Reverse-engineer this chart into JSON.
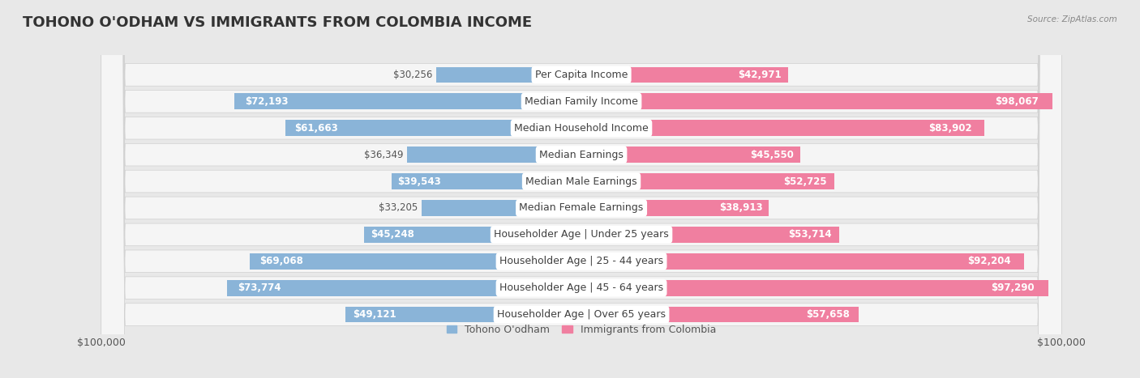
{
  "title": "TOHONO O'ODHAM VS IMMIGRANTS FROM COLOMBIA INCOME",
  "source": "Source: ZipAtlas.com",
  "categories": [
    "Per Capita Income",
    "Median Family Income",
    "Median Household Income",
    "Median Earnings",
    "Median Male Earnings",
    "Median Female Earnings",
    "Householder Age | Under 25 years",
    "Householder Age | 25 - 44 years",
    "Householder Age | 45 - 64 years",
    "Householder Age | Over 65 years"
  ],
  "tohono_values": [
    30256,
    72193,
    61663,
    36349,
    39543,
    33205,
    45248,
    69068,
    73774,
    49121
  ],
  "colombia_values": [
    42971,
    98067,
    83902,
    45550,
    52725,
    38913,
    53714,
    92204,
    97290,
    57658
  ],
  "tohono_color": "#8ab4d8",
  "colombia_color": "#f07fa0",
  "tohono_label": "Tohono O'odham",
  "colombia_label": "Immigrants from Colombia",
  "max_value": 100000,
  "bg_color": "#e8e8e8",
  "row_bg_color": "#f5f5f5",
  "bar_height": 0.6,
  "title_fontsize": 13,
  "label_fontsize": 9,
  "value_fontsize": 8.5,
  "axis_label_fontsize": 9,
  "inside_threshold": 0.38
}
